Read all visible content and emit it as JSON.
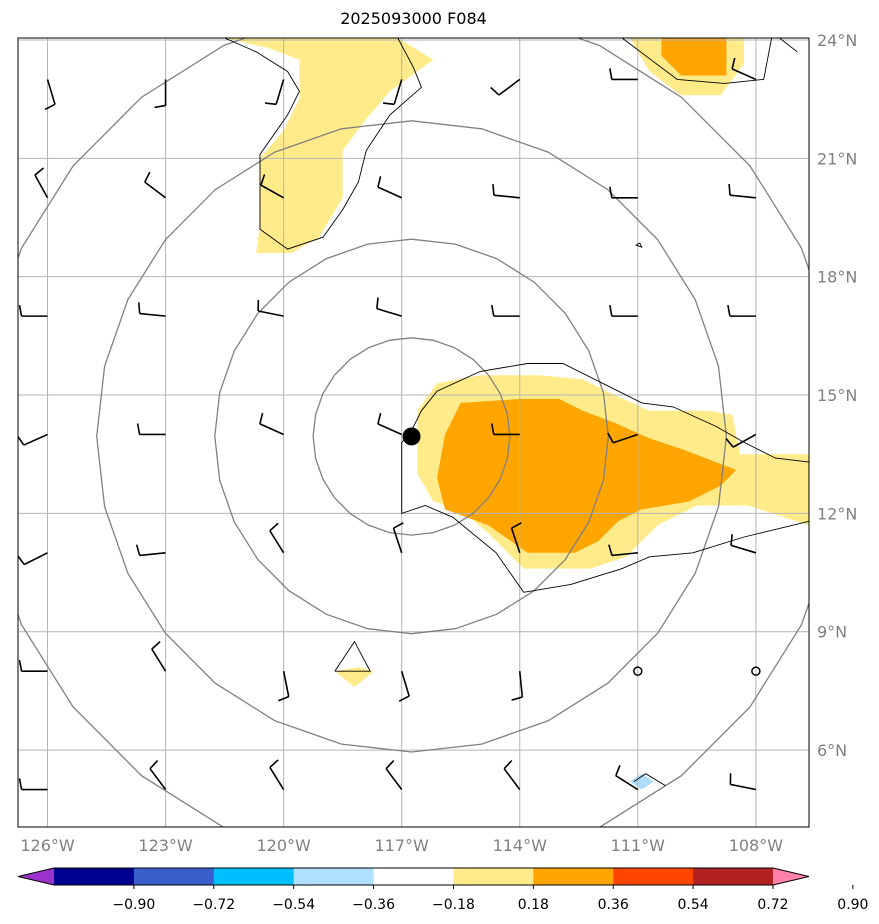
{
  "title": "2025093000 F084",
  "map": {
    "lon_range": [
      -126.75,
      -106.65
    ],
    "lat_range": [
      4.05,
      24.05
    ],
    "lon_ticks": [
      {
        "value": -126,
        "label": "126°W"
      },
      {
        "value": -123,
        "label": "123°W"
      },
      {
        "value": -120,
        "label": "120°W"
      },
      {
        "value": -117,
        "label": "117°W"
      },
      {
        "value": -114,
        "label": "114°W"
      },
      {
        "value": -111,
        "label": "111°W"
      },
      {
        "value": -108,
        "label": "108°W"
      }
    ],
    "lat_ticks": [
      {
        "value": 24,
        "label": "24°N"
      },
      {
        "value": 21,
        "label": "21°N"
      },
      {
        "value": 18,
        "label": "18°N"
      },
      {
        "value": 15,
        "label": "15°N"
      },
      {
        "value": 12,
        "label": "12°N"
      },
      {
        "value": 9,
        "label": "9°N"
      },
      {
        "value": 6,
        "label": "6°N"
      }
    ],
    "storm_center": {
      "lon": -116.75,
      "lat": 13.95
    },
    "range_ring_radii_deg": [
      2.5,
      5.0,
      8.0,
      11.0
    ],
    "calm_points": [
      {
        "lon": -111,
        "lat": 8
      },
      {
        "lon": -108,
        "lat": 8
      }
    ]
  },
  "fill_polygons": [
    {
      "name": "yellow-north",
      "color": "#ffeb8a",
      "points": [
        [
          -121.5,
          24.05
        ],
        [
          -118.5,
          24.05
        ],
        [
          -117.1,
          24.05
        ],
        [
          -116.2,
          23.5
        ],
        [
          -117.3,
          22.7
        ],
        [
          -117.9,
          22.0
        ],
        [
          -118.5,
          21.2
        ],
        [
          -118.5,
          20.0
        ],
        [
          -119.1,
          19.0
        ],
        [
          -119.8,
          18.6
        ],
        [
          -120.7,
          18.6
        ],
        [
          -120.6,
          19.3
        ],
        [
          -120.6,
          21.0
        ],
        [
          -120.0,
          21.7
        ],
        [
          -119.6,
          22.5
        ],
        [
          -119.6,
          23.5
        ],
        [
          -120.4,
          23.8
        ],
        [
          -121.5,
          24.05
        ]
      ]
    },
    {
      "name": "yellow-ne",
      "color": "#ffeb8a",
      "points": [
        [
          -110.9,
          24.05
        ],
        [
          -108.3,
          24.05
        ],
        [
          -108.3,
          23.4
        ],
        [
          -108.9,
          22.6
        ],
        [
          -109.9,
          22.6
        ],
        [
          -110.7,
          23.2
        ],
        [
          -111.2,
          24.05
        ]
      ]
    },
    {
      "name": "orange-ne",
      "color": "#ffa500",
      "points": [
        [
          -110.4,
          24.05
        ],
        [
          -108.75,
          24.05
        ],
        [
          -108.75,
          23.1
        ],
        [
          -109.9,
          23.1
        ],
        [
          -110.4,
          23.6
        ]
      ]
    },
    {
      "name": "yellow-main",
      "color": "#ffeb8a",
      "points": [
        [
          -116.1,
          15.3
        ],
        [
          -115.0,
          15.5
        ],
        [
          -113.5,
          15.5
        ],
        [
          -112.4,
          15.4
        ],
        [
          -111.8,
          15.1
        ],
        [
          -110.7,
          14.6
        ],
        [
          -109.2,
          14.6
        ],
        [
          -108.6,
          14.5
        ],
        [
          -108.4,
          13.5
        ],
        [
          -107.6,
          13.5
        ],
        [
          -106.65,
          13.5
        ],
        [
          -106.65,
          11.7
        ],
        [
          -108.2,
          12.2
        ],
        [
          -109.5,
          12.2
        ],
        [
          -110.5,
          11.7
        ],
        [
          -111.3,
          10.9
        ],
        [
          -112.2,
          10.6
        ],
        [
          -113.4,
          10.6
        ],
        [
          -113.9,
          10.6
        ],
        [
          -114.8,
          11.5
        ],
        [
          -115.5,
          12.1
        ],
        [
          -116.2,
          12.3
        ],
        [
          -116.6,
          13.0
        ],
        [
          -116.6,
          14.6
        ],
        [
          -116.1,
          15.3
        ]
      ]
    },
    {
      "name": "orange-main",
      "color": "#ffa500",
      "points": [
        [
          -115.9,
          14.0
        ],
        [
          -115.5,
          14.8
        ],
        [
          -114.0,
          14.9
        ],
        [
          -113.0,
          14.9
        ],
        [
          -112.4,
          14.6
        ],
        [
          -111.6,
          14.3
        ],
        [
          -110.7,
          13.9
        ],
        [
          -109.8,
          13.6
        ],
        [
          -108.5,
          13.1
        ],
        [
          -108.9,
          12.7
        ],
        [
          -109.7,
          12.3
        ],
        [
          -110.9,
          12.1
        ],
        [
          -111.5,
          11.8
        ],
        [
          -112.0,
          11.3
        ],
        [
          -112.6,
          11.0
        ],
        [
          -113.8,
          11.0
        ],
        [
          -114.8,
          11.7
        ],
        [
          -115.9,
          12.1
        ],
        [
          -116.1,
          12.9
        ],
        [
          -115.9,
          14.0
        ]
      ]
    },
    {
      "name": "yellow-small",
      "color": "#ffeb8a",
      "points": [
        [
          -118.7,
          8.0
        ],
        [
          -118.1,
          8.1
        ],
        [
          -117.7,
          8.0
        ],
        [
          -118.2,
          7.6
        ],
        [
          -118.7,
          8.0
        ]
      ]
    },
    {
      "name": "blue-small",
      "color": "#acdcf9",
      "points": [
        [
          -111.2,
          5.2
        ],
        [
          -110.9,
          5.4
        ],
        [
          -110.6,
          5.2
        ],
        [
          -110.9,
          5.0
        ],
        [
          -111.2,
          5.2
        ]
      ]
    }
  ],
  "contour_lines": [
    {
      "name": "contour-north-blob",
      "points": [
        [
          -121.5,
          24.05
        ],
        [
          -120.7,
          23.7
        ],
        [
          -119.9,
          23.2
        ],
        [
          -119.6,
          22.7
        ],
        [
          -119.9,
          22.1
        ],
        [
          -120.6,
          21.1
        ],
        [
          -120.6,
          19.2
        ],
        [
          -119.9,
          18.7
        ],
        [
          -119.0,
          19.0
        ],
        [
          -118.5,
          19.7
        ],
        [
          -118.1,
          20.4
        ],
        [
          -117.9,
          21.2
        ],
        [
          -117.3,
          22.1
        ],
        [
          -116.5,
          22.8
        ],
        [
          -116.7,
          23.3
        ],
        [
          -117.1,
          24.05
        ]
      ]
    },
    {
      "name": "contour-main-blob",
      "points": [
        [
          -117.0,
          13.8
        ],
        [
          -116.8,
          14.0
        ],
        [
          -116.5,
          14.6
        ],
        [
          -116.1,
          15.1
        ],
        [
          -115.0,
          15.6
        ],
        [
          -113.8,
          15.8
        ],
        [
          -112.9,
          15.8
        ],
        [
          -111.9,
          15.3
        ],
        [
          -110.9,
          14.8
        ],
        [
          -110.1,
          14.7
        ],
        [
          -109.0,
          14.2
        ],
        [
          -108.3,
          13.8
        ],
        [
          -107.5,
          13.4
        ],
        [
          -106.65,
          13.3
        ]
      ]
    },
    {
      "name": "contour-main-blob-b",
      "points": [
        [
          -106.65,
          11.8
        ],
        [
          -108.3,
          11.4
        ],
        [
          -109.6,
          11.0
        ],
        [
          -110.7,
          10.9
        ],
        [
          -111.4,
          10.6
        ],
        [
          -112.7,
          10.2
        ],
        [
          -113.9,
          10.0
        ],
        [
          -114.6,
          11.0
        ],
        [
          -115.7,
          11.9
        ],
        [
          -116.4,
          12.2
        ],
        [
          -117.0,
          12.0
        ],
        [
          -117.0,
          13.0
        ],
        [
          -117.0,
          13.8
        ]
      ]
    },
    {
      "name": "contour-ne-a",
      "points": [
        [
          -111.4,
          24.05
        ],
        [
          -110.8,
          23.6
        ],
        [
          -110.0,
          23.0
        ],
        [
          -108.8,
          22.9
        ],
        [
          -107.8,
          23.0
        ],
        [
          -107.6,
          24.05
        ]
      ]
    },
    {
      "name": "contour-ne-b",
      "points": [
        [
          -107.4,
          24.05
        ],
        [
          -106.95,
          23.7
        ]
      ]
    },
    {
      "name": "contour-yellow-small",
      "points": [
        [
          -118.7,
          8.0
        ],
        [
          -118.2,
          8.75
        ],
        [
          -117.8,
          8.0
        ],
        [
          -118.7,
          8.0
        ]
      ]
    },
    {
      "name": "contour-blue-small",
      "points": [
        [
          -111.1,
          5.2
        ],
        [
          -110.8,
          5.4
        ],
        [
          -110.3,
          5.1
        ]
      ]
    },
    {
      "name": "contour-dot-18N",
      "points": [
        [
          -111.05,
          18.8
        ],
        [
          -110.95,
          18.85
        ],
        [
          -110.9,
          18.75
        ],
        [
          -111.05,
          18.8
        ]
      ]
    }
  ],
  "wind_barbs": [
    {
      "lon": -126,
      "lat": 23,
      "u": 3,
      "v": -10
    },
    {
      "lon": -123,
      "lat": 23,
      "u": 0,
      "v": -10
    },
    {
      "lon": -120,
      "lat": 23,
      "u": -3,
      "v": -10
    },
    {
      "lon": -117,
      "lat": 23,
      "u": -3,
      "v": -10
    },
    {
      "lon": -114,
      "lat": 23,
      "u": -8,
      "v": -6
    },
    {
      "lon": -111,
      "lat": 23,
      "u": -10,
      "v": 0
    },
    {
      "lon": -108,
      "lat": 23,
      "u": -9,
      "v": 4
    },
    {
      "lon": -126,
      "lat": 20,
      "u": -5,
      "v": 9
    },
    {
      "lon": -123,
      "lat": 20,
      "u": -8,
      "v": 6
    },
    {
      "lon": -120,
      "lat": 20,
      "u": -9,
      "v": 5
    },
    {
      "lon": -117,
      "lat": 20,
      "u": -9,
      "v": 4
    },
    {
      "lon": -114,
      "lat": 20,
      "u": -10,
      "v": 1
    },
    {
      "lon": -111,
      "lat": 20,
      "u": -10,
      "v": 0
    },
    {
      "lon": -108,
      "lat": 20,
      "u": -10,
      "v": 1
    },
    {
      "lon": -126,
      "lat": 17,
      "u": -10,
      "v": 0
    },
    {
      "lon": -123,
      "lat": 17,
      "u": -10,
      "v": 1
    },
    {
      "lon": -120,
      "lat": 17,
      "u": -10,
      "v": 2
    },
    {
      "lon": -117,
      "lat": 17,
      "u": -10,
      "v": 3
    },
    {
      "lon": -114,
      "lat": 17,
      "u": -10,
      "v": 0
    },
    {
      "lon": -111,
      "lat": 17,
      "u": -10,
      "v": 0
    },
    {
      "lon": -108,
      "lat": 17,
      "u": -10,
      "v": 0
    },
    {
      "lon": -126,
      "lat": 14,
      "u": -9,
      "v": -4
    },
    {
      "lon": -123,
      "lat": 14,
      "u": -10,
      "v": 0
    },
    {
      "lon": -120,
      "lat": 14,
      "u": -9,
      "v": 4
    },
    {
      "lon": -117,
      "lat": 14,
      "u": -9,
      "v": 4
    },
    {
      "lon": -114,
      "lat": 14,
      "u": -10,
      "v": 0
    },
    {
      "lon": -111,
      "lat": 14,
      "u": -9,
      "v": -3
    },
    {
      "lon": -108,
      "lat": 14,
      "u": -9,
      "v": -5
    },
    {
      "lon": -126,
      "lat": 11,
      "u": -8,
      "v": -4
    },
    {
      "lon": -123,
      "lat": 11,
      "u": -10,
      "v": -1
    },
    {
      "lon": -120,
      "lat": 11,
      "u": -5,
      "v": 8
    },
    {
      "lon": -117,
      "lat": 11,
      "u": -3,
      "v": 9
    },
    {
      "lon": -114,
      "lat": 11,
      "u": -3,
      "v": 9
    },
    {
      "lon": -111,
      "lat": 11,
      "u": -10,
      "v": -1
    },
    {
      "lon": -108,
      "lat": 11,
      "u": -10,
      "v": 3
    },
    {
      "lon": -126,
      "lat": 8,
      "u": -10,
      "v": 0
    },
    {
      "lon": -123,
      "lat": 8,
      "u": -5,
      "v": 8
    },
    {
      "lon": -120,
      "lat": 8,
      "u": 2,
      "v": -10
    },
    {
      "lon": -117,
      "lat": 8,
      "u": 3,
      "v": -10
    },
    {
      "lon": -114,
      "lat": 8,
      "u": 1,
      "v": -10
    },
    {
      "lon": -126,
      "lat": 5,
      "u": -10,
      "v": 0
    },
    {
      "lon": -123,
      "lat": 5,
      "u": -6,
      "v": 8
    },
    {
      "lon": -120,
      "lat": 5,
      "u": -5,
      "v": 8
    },
    {
      "lon": -117,
      "lat": 5,
      "u": -6,
      "v": 8
    },
    {
      "lon": -114,
      "lat": 5,
      "u": -6,
      "v": 8
    },
    {
      "lon": -111,
      "lat": 5,
      "u": -8,
      "v": 5
    },
    {
      "lon": -108,
      "lat": 5,
      "u": -10,
      "v": 2
    }
  ],
  "colorbar": {
    "colors": [
      "#9933cc",
      "#000090",
      "#3a5fcd",
      "#00bfff",
      "#b0e0ff",
      "#ffffff",
      "#ffeb8a",
      "#ffa500",
      "#ff4500",
      "#b22222",
      "#ff82ab"
    ],
    "tick_labels": [
      "−0.90",
      "−0.72",
      "−0.54",
      "−0.36",
      "−0.18",
      "0.18",
      "0.36",
      "0.54",
      "0.72",
      "0.90"
    ]
  }
}
